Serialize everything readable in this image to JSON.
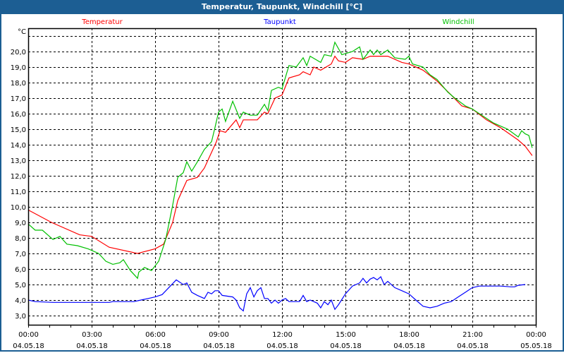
{
  "window": {
    "title": "Temperatur, Taupunkt, Windchill [°C]"
  },
  "colors": {
    "temperature": "#ff0000",
    "dewpoint": "#0000ff",
    "windchill": "#00c000",
    "titlebar": "#1c5e93"
  },
  "chart_data": {
    "type": "line",
    "title": "Temperatur, Taupunkt, Windchill [°C]",
    "ylabel": "°C",
    "xlabel": "",
    "xlim_hours": [
      0,
      24
    ],
    "ylim": [
      2.4,
      21.5
    ],
    "grid": true,
    "legend_placement": "top",
    "y_ticks": [
      "3,0",
      "4,0",
      "5,0",
      "6,0",
      "7,0",
      "8,0",
      "9,0",
      "10,0",
      "11,0",
      "12,0",
      "13,0",
      "14,0",
      "15,0",
      "16,0",
      "17,0",
      "18,0",
      "19,0",
      "20,0"
    ],
    "y_tick_values": [
      3,
      4,
      5,
      6,
      7,
      8,
      9,
      10,
      11,
      12,
      13,
      14,
      15,
      16,
      17,
      18,
      19,
      20
    ],
    "x_ticks": [
      {
        "hour": 0,
        "time": "00:00",
        "date": "04.05.18"
      },
      {
        "hour": 3,
        "time": "03:00",
        "date": "04.05.18"
      },
      {
        "hour": 6,
        "time": "06:00",
        "date": "04.05.18"
      },
      {
        "hour": 9,
        "time": "09:00",
        "date": "04.05.18"
      },
      {
        "hour": 12,
        "time": "12:00",
        "date": "04.05.18"
      },
      {
        "hour": 15,
        "time": "15:00",
        "date": "04.05.18"
      },
      {
        "hour": 18,
        "time": "18:00",
        "date": "04.05.18"
      },
      {
        "hour": 21,
        "time": "21:00",
        "date": "04.05.18"
      },
      {
        "hour": 24,
        "time": "00:00",
        "date": "05.05.18"
      }
    ],
    "series": [
      {
        "name": "Temperatur",
        "key": "temperature",
        "points": [
          [
            0,
            9.8
          ],
          [
            1.1,
            9.0
          ],
          [
            2.43,
            8.2
          ],
          [
            3,
            8.1
          ],
          [
            3.83,
            7.4
          ],
          [
            5.17,
            7.0
          ],
          [
            6,
            7.3
          ],
          [
            6.4,
            7.6
          ],
          [
            6.83,
            9.0
          ],
          [
            7.07,
            10.4
          ],
          [
            7.5,
            11.7
          ],
          [
            8,
            11.9
          ],
          [
            8.33,
            12.5
          ],
          [
            8.9,
            14.2
          ],
          [
            9.07,
            14.9
          ],
          [
            9.33,
            14.8
          ],
          [
            9.83,
            15.6
          ],
          [
            10,
            15.1
          ],
          [
            10.17,
            15.6
          ],
          [
            10.83,
            15.6
          ],
          [
            11.17,
            16.1
          ],
          [
            11.33,
            16.0
          ],
          [
            11.67,
            17.0
          ],
          [
            12,
            17.2
          ],
          [
            12.33,
            18.3
          ],
          [
            12.83,
            18.5
          ],
          [
            13,
            18.7
          ],
          [
            13.33,
            18.5
          ],
          [
            13.5,
            19.0
          ],
          [
            13.83,
            18.8
          ],
          [
            14.33,
            19.2
          ],
          [
            14.5,
            19.7
          ],
          [
            14.67,
            19.4
          ],
          [
            15,
            19.3
          ],
          [
            15.33,
            19.6
          ],
          [
            15.83,
            19.5
          ],
          [
            16.17,
            19.7
          ],
          [
            17,
            19.7
          ],
          [
            17.67,
            19.3
          ],
          [
            18,
            19.2
          ],
          [
            18.67,
            18.8
          ],
          [
            19.33,
            18.1
          ],
          [
            20,
            17.2
          ],
          [
            20.5,
            16.5
          ],
          [
            21,
            16.3
          ],
          [
            21.67,
            15.6
          ],
          [
            22.33,
            15.1
          ],
          [
            23.17,
            14.3
          ],
          [
            23.5,
            13.9
          ],
          [
            23.83,
            13.3
          ]
        ]
      },
      {
        "name": "Taupunkt",
        "key": "dewpoint",
        "points": [
          [
            0,
            4.0
          ],
          [
            0.33,
            3.9
          ],
          [
            1.17,
            3.85
          ],
          [
            3.83,
            3.85
          ],
          [
            4,
            3.9
          ],
          [
            5,
            3.9
          ],
          [
            5.33,
            4.0
          ],
          [
            5.67,
            4.1
          ],
          [
            6,
            4.2
          ],
          [
            6.33,
            4.35
          ],
          [
            7,
            5.3
          ],
          [
            7.33,
            5.0
          ],
          [
            7.5,
            5.1
          ],
          [
            7.73,
            4.5
          ],
          [
            8,
            4.3
          ],
          [
            8.33,
            4.1
          ],
          [
            8.5,
            4.5
          ],
          [
            8.67,
            4.4
          ],
          [
            8.83,
            4.6
          ],
          [
            9,
            4.6
          ],
          [
            9.17,
            4.3
          ],
          [
            9.67,
            4.2
          ],
          [
            9.83,
            4.0
          ],
          [
            10,
            3.5
          ],
          [
            10.17,
            3.3
          ],
          [
            10.33,
            4.4
          ],
          [
            10.5,
            4.8
          ],
          [
            10.67,
            4.2
          ],
          [
            10.83,
            4.6
          ],
          [
            11,
            4.8
          ],
          [
            11.17,
            4.1
          ],
          [
            11.33,
            4.1
          ],
          [
            11.5,
            3.8
          ],
          [
            11.67,
            4.0
          ],
          [
            11.83,
            3.8
          ],
          [
            12,
            4.0
          ],
          [
            12.17,
            4.1
          ],
          [
            12.33,
            3.9
          ],
          [
            12.83,
            3.9
          ],
          [
            13,
            4.3
          ],
          [
            13.17,
            3.9
          ],
          [
            13.33,
            4.0
          ],
          [
            13.67,
            3.8
          ],
          [
            13.83,
            3.5
          ],
          [
            14,
            3.9
          ],
          [
            14.17,
            3.7
          ],
          [
            14.33,
            4.0
          ],
          [
            14.5,
            3.4
          ],
          [
            14.67,
            3.7
          ],
          [
            15,
            4.4
          ],
          [
            15.33,
            4.9
          ],
          [
            15.67,
            5.1
          ],
          [
            15.83,
            5.4
          ],
          [
            16,
            5.1
          ],
          [
            16.17,
            5.35
          ],
          [
            16.33,
            5.45
          ],
          [
            16.5,
            5.3
          ],
          [
            16.67,
            5.5
          ],
          [
            16.83,
            5.0
          ],
          [
            17,
            5.2
          ],
          [
            17.33,
            4.8
          ],
          [
            17.67,
            4.6
          ],
          [
            18,
            4.4
          ],
          [
            18.33,
            4.0
          ],
          [
            18.67,
            3.6
          ],
          [
            19,
            3.5
          ],
          [
            19.33,
            3.6
          ],
          [
            19.67,
            3.8
          ],
          [
            20,
            3.9
          ],
          [
            20.33,
            4.2
          ],
          [
            20.67,
            4.5
          ],
          [
            21,
            4.8
          ],
          [
            21.33,
            4.9
          ],
          [
            22.33,
            4.9
          ],
          [
            22.83,
            4.85
          ],
          [
            23,
            4.85
          ],
          [
            23.17,
            4.95
          ],
          [
            23.5,
            5.0
          ]
        ]
      },
      {
        "name": "Windchill",
        "key": "windchill",
        "points": [
          [
            0,
            8.9
          ],
          [
            0.33,
            8.5
          ],
          [
            0.67,
            8.5
          ],
          [
            1.17,
            7.9
          ],
          [
            1.5,
            8.1
          ],
          [
            1.83,
            7.6
          ],
          [
            2.33,
            7.5
          ],
          [
            2.83,
            7.3
          ],
          [
            3.33,
            7.0
          ],
          [
            3.67,
            6.5
          ],
          [
            4,
            6.3
          ],
          [
            4.33,
            6.4
          ],
          [
            4.5,
            6.6
          ],
          [
            4.83,
            5.9
          ],
          [
            5.17,
            5.4
          ],
          [
            5.23,
            5.8
          ],
          [
            5.5,
            6.1
          ],
          [
            5.83,
            5.9
          ],
          [
            6.17,
            6.5
          ],
          [
            6.5,
            7.9
          ],
          [
            6.83,
            10.1
          ],
          [
            7.07,
            11.9
          ],
          [
            7.33,
            12.2
          ],
          [
            7.5,
            12.9
          ],
          [
            7.73,
            12.3
          ],
          [
            8,
            12.9
          ],
          [
            8.33,
            13.7
          ],
          [
            8.67,
            14.2
          ],
          [
            8.83,
            15.1
          ],
          [
            9,
            16.1
          ],
          [
            9.17,
            16.3
          ],
          [
            9.33,
            15.5
          ],
          [
            9.67,
            16.8
          ],
          [
            10,
            15.7
          ],
          [
            10.17,
            16.1
          ],
          [
            10.5,
            15.9
          ],
          [
            10.83,
            15.9
          ],
          [
            11.17,
            16.6
          ],
          [
            11.33,
            16.2
          ],
          [
            11.5,
            17.5
          ],
          [
            11.83,
            17.7
          ],
          [
            12,
            17.6
          ],
          [
            12.33,
            19.1
          ],
          [
            12.67,
            19.0
          ],
          [
            13,
            19.6
          ],
          [
            13.17,
            19.1
          ],
          [
            13.33,
            19.7
          ],
          [
            13.83,
            19.3
          ],
          [
            14,
            19.8
          ],
          [
            14.33,
            19.7
          ],
          [
            14.5,
            20.6
          ],
          [
            14.83,
            19.8
          ],
          [
            15.33,
            20.0
          ],
          [
            15.67,
            20.3
          ],
          [
            15.83,
            19.5
          ],
          [
            16.17,
            20.1
          ],
          [
            16.33,
            19.8
          ],
          [
            16.5,
            20.1
          ],
          [
            16.67,
            19.8
          ],
          [
            17,
            20.1
          ],
          [
            17.33,
            19.6
          ],
          [
            17.83,
            19.5
          ],
          [
            18,
            19.7
          ],
          [
            18.17,
            19.2
          ],
          [
            18.67,
            19.0
          ],
          [
            19,
            18.5
          ],
          [
            19.33,
            18.2
          ],
          [
            19.83,
            17.4
          ],
          [
            20.17,
            17.0
          ],
          [
            20.67,
            16.5
          ],
          [
            21,
            16.3
          ],
          [
            21.33,
            16.0
          ],
          [
            22,
            15.4
          ],
          [
            22.67,
            15.0
          ],
          [
            23.17,
            14.5
          ],
          [
            23.33,
            14.9
          ],
          [
            23.5,
            14.7
          ],
          [
            23.67,
            14.6
          ],
          [
            23.83,
            13.8
          ]
        ]
      }
    ]
  }
}
